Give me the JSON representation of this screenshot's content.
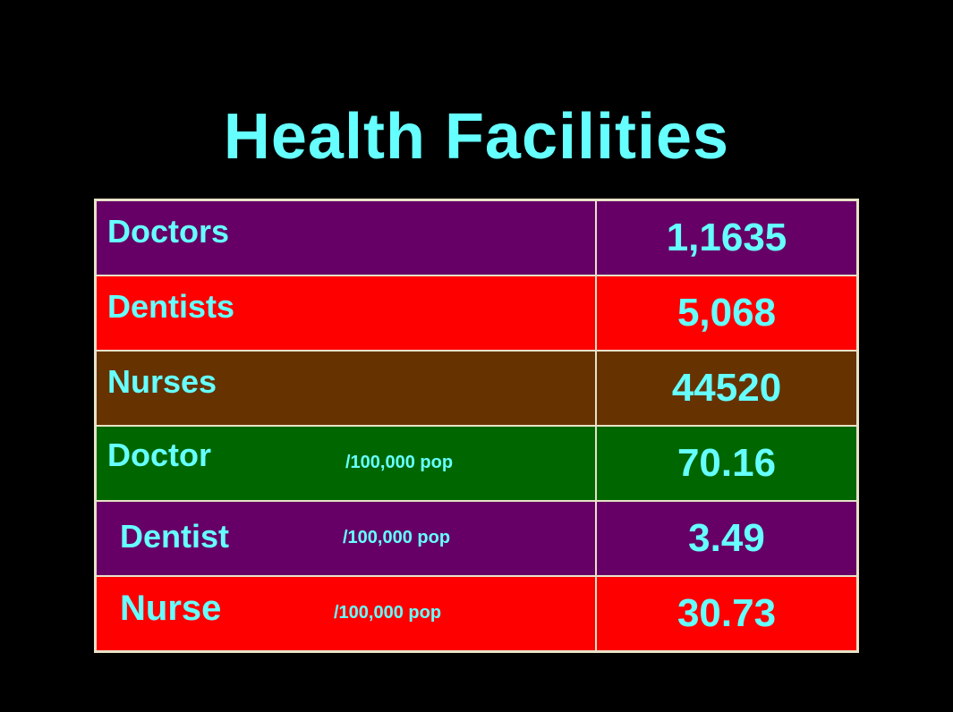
{
  "slide": {
    "title": "Health Facilities"
  },
  "colors": {
    "text": "#66ffff",
    "background": "#000000",
    "row_purple": "#660066",
    "row_red": "#ff0000",
    "row_brown": "#663300",
    "row_green": "#006600"
  },
  "table": {
    "rows": [
      {
        "label": "Doctors",
        "unit": "",
        "value": "1,1635"
      },
      {
        "label": "Dentists",
        "unit": "",
        "value": "5,068"
      },
      {
        "label": "Nurses",
        "unit": "",
        "value": "44520"
      },
      {
        "label": "Doctor",
        "unit": "/100,000 pop",
        "value": "70.16"
      },
      {
        "label": "Dentist",
        "unit": "/100,000 pop",
        "value": "3.49"
      },
      {
        "label": "Nurse",
        "unit": "/100,000 pop",
        "value": "30.73"
      }
    ]
  }
}
